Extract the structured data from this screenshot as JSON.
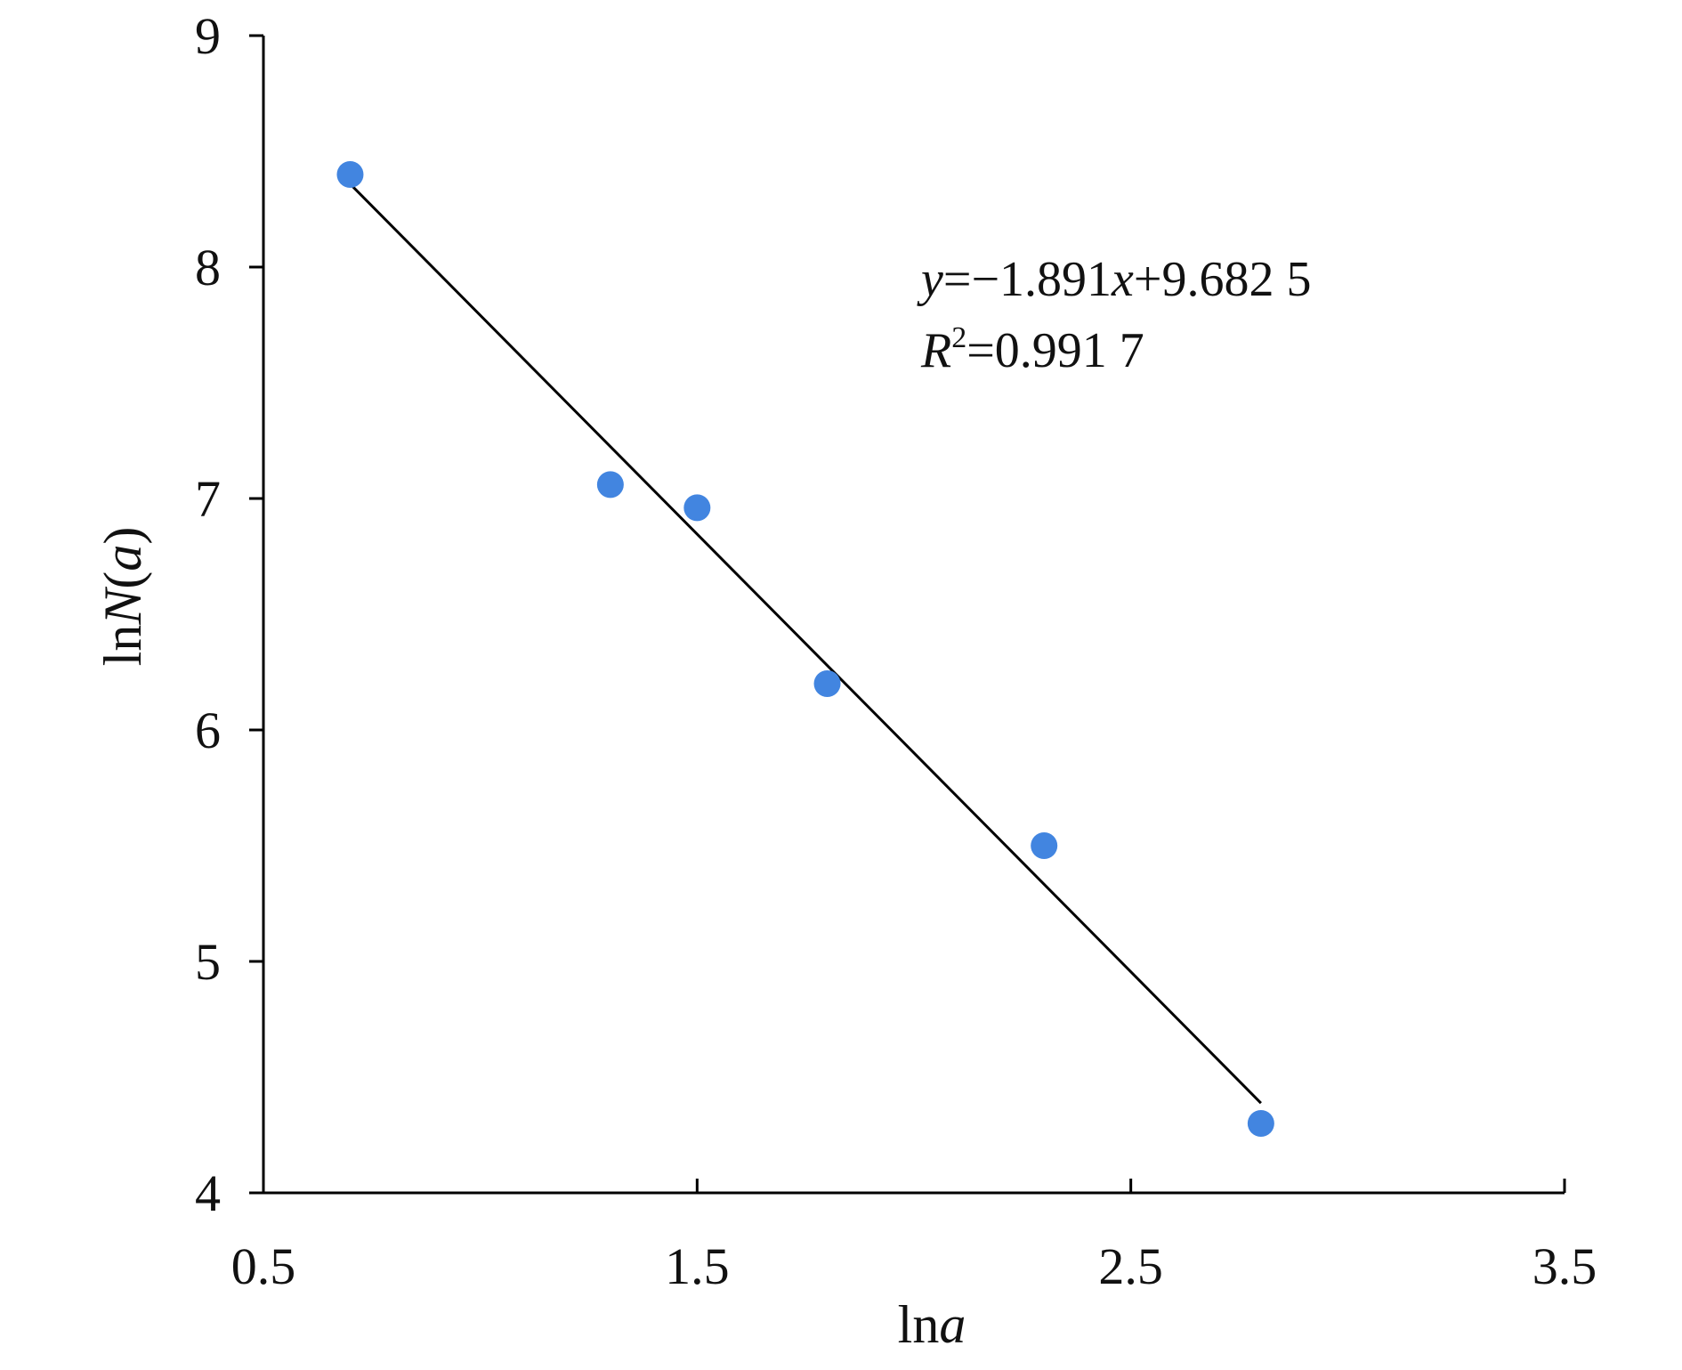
{
  "chart_data": {
    "type": "scatter",
    "title": "",
    "xlabel": "lna",
    "xlabel_parts": {
      "func": "ln",
      "var": "a"
    },
    "ylabel": "lnN(a)",
    "ylabel_parts": {
      "func": "ln",
      "var": "N",
      "suffix_open": "(",
      "arg": "a",
      "suffix_close": ")"
    },
    "xlim": [
      0.5,
      3.5
    ],
    "ylim": [
      4,
      9
    ],
    "xticks": [
      0.5,
      1.5,
      2.5,
      3.5
    ],
    "xtick_labels": [
      "0.5",
      "1.5",
      "2.5",
      "3.5"
    ],
    "yticks": [
      4,
      5,
      6,
      7,
      8,
      9
    ],
    "ytick_labels": [
      "4",
      "5",
      "6",
      "7",
      "8",
      "9"
    ],
    "grid": false,
    "point_color": "#4285E0",
    "line_color": "#000000",
    "series": [
      {
        "x": [
          0.7,
          1.3,
          1.5,
          1.8,
          2.3,
          2.8
        ],
        "y": [
          8.4,
          7.06,
          6.96,
          6.2,
          5.5,
          4.3
        ]
      }
    ],
    "trendline": {
      "slope": -1.891,
      "intercept": 9.6825,
      "x_range": [
        0.7,
        2.8
      ]
    },
    "annotations": {
      "equation": {
        "y": "y",
        "eq": "=−1.891",
        "x": "x",
        "rest": "+9.682 5"
      },
      "r_squared": {
        "r": "R",
        "sup": "2",
        "rest": "=0.991 7"
      }
    }
  }
}
